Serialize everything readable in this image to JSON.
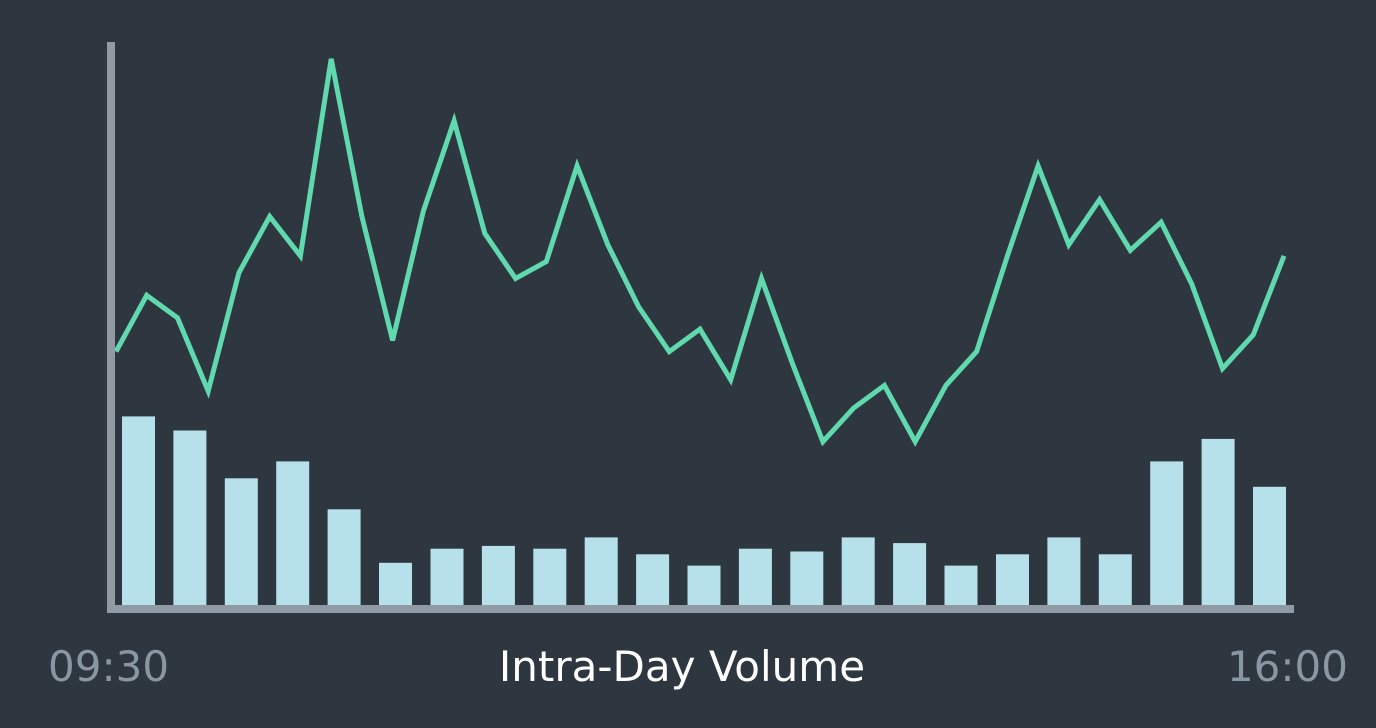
{
  "chart_data": {
    "type": "bar",
    "xlabel": "Intra-Day Volume",
    "x_ticks": [
      "09:30",
      "16:00"
    ],
    "grid": false,
    "legend": "none",
    "colors": {
      "background": "#2e3740",
      "axis": "#8f9aa5",
      "volume_bars": "#b6e1eb",
      "price_line": "#5fd9ad",
      "tick_text": "#8a97a3",
      "title_text": "#ffffff"
    },
    "bars": {
      "ylim": [
        0,
        100
      ],
      "values": [
        33.5,
        31,
        22.5,
        25.5,
        17,
        7.5,
        10,
        10.5,
        10,
        12,
        9,
        7,
        10,
        9.5,
        12,
        11,
        7,
        9,
        12,
        9,
        25.5,
        29.5,
        21
      ]
    },
    "line": {
      "ylim": [
        0,
        100
      ],
      "values": [
        45,
        55,
        51,
        38,
        59,
        69,
        62,
        97,
        69,
        47,
        70,
        86,
        66,
        58,
        61,
        78,
        64,
        53,
        45,
        49,
        40,
        58,
        43,
        29,
        35,
        39,
        29,
        39,
        45,
        62,
        78,
        64,
        72,
        63,
        68,
        57,
        42,
        48,
        62
      ]
    }
  }
}
